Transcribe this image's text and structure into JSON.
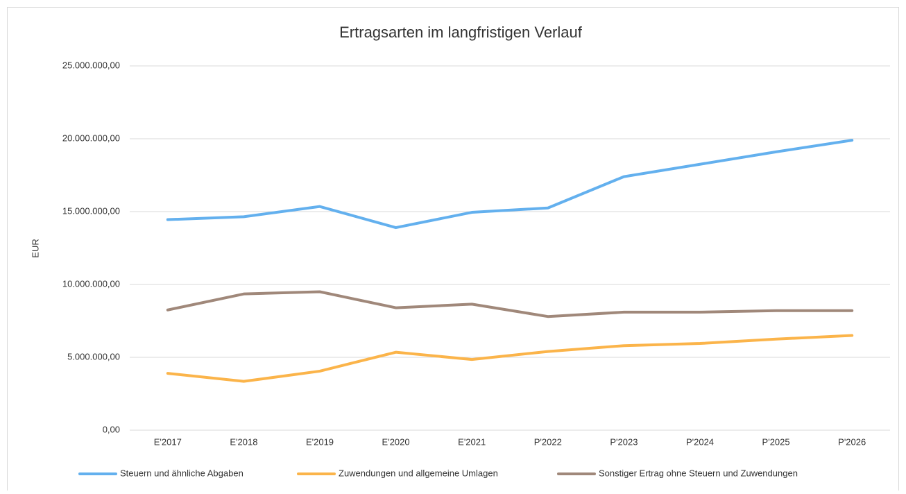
{
  "chart_data": {
    "type": "line",
    "title": "Ertragsarten im langfristigen Verlauf",
    "y_label": "EUR",
    "categories": [
      "E'2017",
      "E'2018",
      "E'2019",
      "E'2020",
      "E'2021",
      "P'2022",
      "P'2023",
      "P'2024",
      "P'2025",
      "P'2026"
    ],
    "series": [
      {
        "name": "Steuern und ähnliche Abgaben",
        "color": "#63b0ee",
        "values": [
          14450000,
          14650000,
          15350000,
          13900000,
          14950000,
          15250000,
          17400000,
          18250000,
          19100000,
          19900000
        ]
      },
      {
        "name": "Zuwendungen und allgemeine Umlagen",
        "color": "#fbb44a",
        "values": [
          3900000,
          3350000,
          4050000,
          5350000,
          4850000,
          5400000,
          5800000,
          5950000,
          6250000,
          6500000
        ]
      },
      {
        "name": "Sonstiger Ertrag ohne Steuern und Zuwendungen",
        "color": "#a0887a",
        "values": [
          8250000,
          9350000,
          9500000,
          8400000,
          8650000,
          7800000,
          8100000,
          8100000,
          8200000,
          8200000
        ]
      }
    ],
    "ylim": [
      0,
      25000000
    ],
    "yticks": [
      {
        "value": 0,
        "label": "0,00"
      },
      {
        "value": 5000000,
        "label": "5.000.000,00"
      },
      {
        "value": 10000000,
        "label": "10.000.000,00"
      },
      {
        "value": 15000000,
        "label": "15.000.000,00"
      },
      {
        "value": 20000000,
        "label": "20.000.000,00"
      },
      {
        "value": 25000000,
        "label": "25.000.000,00"
      }
    ],
    "grid": true,
    "legend": "bottom"
  }
}
